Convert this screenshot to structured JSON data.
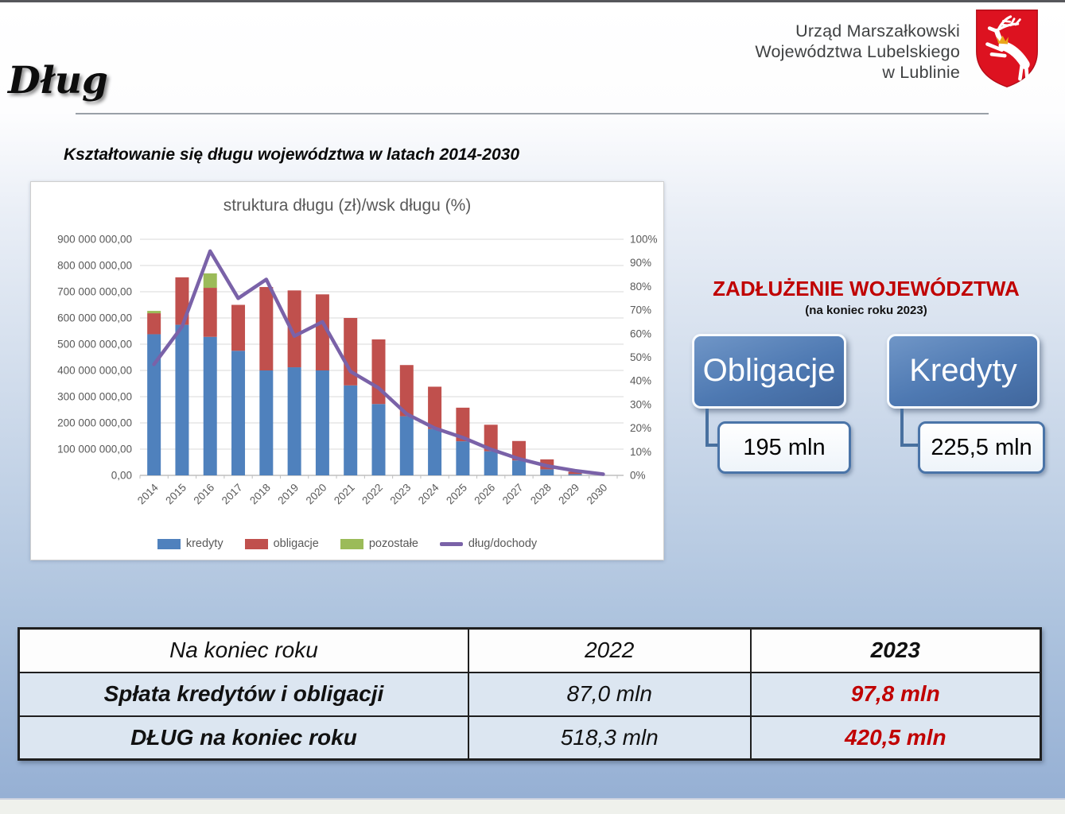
{
  "slide": {
    "title": "Dług",
    "subtitle": "Kształtowanie się długu województwa w latach 2014-2030",
    "org": {
      "line1": "Urząd Marszałkowski",
      "line2": "Województwa Lubelskiego",
      "line3": "w Lublinie"
    },
    "coat_of_arms": "herb-wojewodztwa-lubelskiego (white stag with gold crown on red shield)"
  },
  "chart_data": {
    "type": "bar",
    "subtype": "stacked-bars-with-line",
    "title": "struktura długu (zł)/wsk długu (%)",
    "categories": [
      "2014",
      "2015",
      "2016",
      "2017",
      "2018",
      "2019",
      "2020",
      "2021",
      "2022",
      "2023",
      "2024",
      "2025",
      "2026",
      "2027",
      "2028",
      "2029",
      "2030"
    ],
    "series": [
      {
        "name": "kredyty",
        "type": "bar",
        "color": "#4f81bd",
        "axis": "left",
        "values_mln": [
          538,
          574,
          528,
          475,
          400,
          412,
          400,
          343,
          272,
          225.5,
          177,
          130,
          92,
          57,
          23,
          5,
          0
        ]
      },
      {
        "name": "obligacje",
        "type": "bar",
        "color": "#c0504d",
        "axis": "left",
        "values_mln": [
          80,
          181,
          187,
          175,
          318,
          293,
          290,
          257,
          246.3,
          195,
          161,
          128,
          101,
          74,
          38,
          9,
          0
        ]
      },
      {
        "name": "pozostałe",
        "type": "bar",
        "color": "#9bbb59",
        "axis": "left",
        "values_mln": [
          9,
          0,
          55,
          0,
          0,
          0,
          0,
          0,
          0,
          0,
          0,
          0,
          0,
          0,
          0,
          0,
          0
        ]
      },
      {
        "name": "dług/dochody",
        "type": "line",
        "color": "#7a62a8",
        "axis": "right",
        "values_percent": [
          47,
          63,
          95,
          75,
          83,
          59,
          65,
          44,
          37,
          26,
          20,
          16,
          11,
          7,
          4,
          2,
          0.5
        ]
      }
    ],
    "left_axis": {
      "min": 0,
      "max_mln": 900,
      "labels": [
        "900 000 000,00",
        "800 000 000,00",
        "700 000 000,00",
        "600 000 000,00",
        "500 000 000,00",
        "400 000 000,00",
        "300 000 000,00",
        "200 000 000,00",
        "100 000 000,00",
        "0,00"
      ]
    },
    "right_axis": {
      "labels": [
        "100%",
        "90%",
        "80%",
        "70%",
        "60%",
        "50%",
        "40%",
        "30%",
        "20%",
        "10%",
        "0%"
      ]
    },
    "legend_position": "bottom",
    "grid": "horizontal"
  },
  "right_panel": {
    "heading": "ZADŁUŻENIE WOJEWÓDZTWA",
    "subheading": "(na koniec roku 2023)",
    "heading_color": "#c00000",
    "items": [
      {
        "label": "Obligacje",
        "value": "195 mln"
      },
      {
        "label": "Kredyty",
        "value": "225,5 mln"
      }
    ]
  },
  "table": {
    "header": [
      "Na koniec roku",
      "2022",
      "2023"
    ],
    "rows": [
      [
        "Spłata kredytów i obligacji",
        "87,0 mln",
        "97,8 mln"
      ],
      [
        "DŁUG na koniec roku",
        "518,3 mln",
        "420,5 mln"
      ]
    ],
    "highlight_color": "#c00000"
  }
}
